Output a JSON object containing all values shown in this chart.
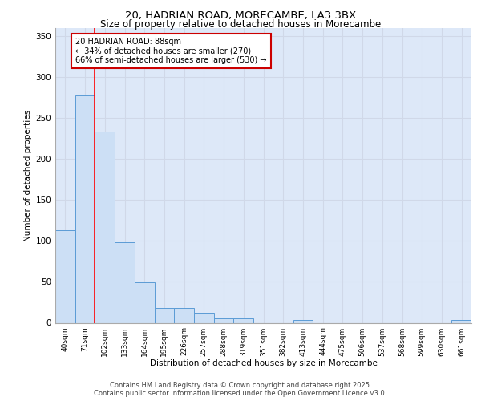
{
  "title_line1": "20, HADRIAN ROAD, MORECAMBE, LA3 3BX",
  "title_line2": "Size of property relative to detached houses in Morecambe",
  "xlabel": "Distribution of detached houses by size in Morecambe",
  "ylabel": "Number of detached properties",
  "categories": [
    "40sqm",
    "71sqm",
    "102sqm",
    "133sqm",
    "164sqm",
    "195sqm",
    "226sqm",
    "257sqm",
    "288sqm",
    "319sqm",
    "351sqm",
    "382sqm",
    "413sqm",
    "444sqm",
    "475sqm",
    "506sqm",
    "537sqm",
    "568sqm",
    "599sqm",
    "630sqm",
    "661sqm"
  ],
  "values": [
    113,
    278,
    234,
    98,
    49,
    18,
    18,
    12,
    5,
    5,
    0,
    0,
    3,
    0,
    0,
    0,
    0,
    0,
    0,
    0,
    3
  ],
  "bar_color": "#ccdff5",
  "bar_edge_color": "#5b9bd5",
  "grid_color": "#d0d8e8",
  "background_color": "#dde8f8",
  "red_line_x": 1.5,
  "annotation_text": "20 HADRIAN ROAD: 88sqm\n← 34% of detached houses are smaller (270)\n66% of semi-detached houses are larger (530) →",
  "annotation_box_color": "#ffffff",
  "annotation_box_edge": "#cc0000",
  "footer_line1": "Contains HM Land Registry data © Crown copyright and database right 2025.",
  "footer_line2": "Contains public sector information licensed under the Open Government Licence v3.0.",
  "ylim": [
    0,
    360
  ],
  "yticks": [
    0,
    50,
    100,
    150,
    200,
    250,
    300,
    350
  ]
}
